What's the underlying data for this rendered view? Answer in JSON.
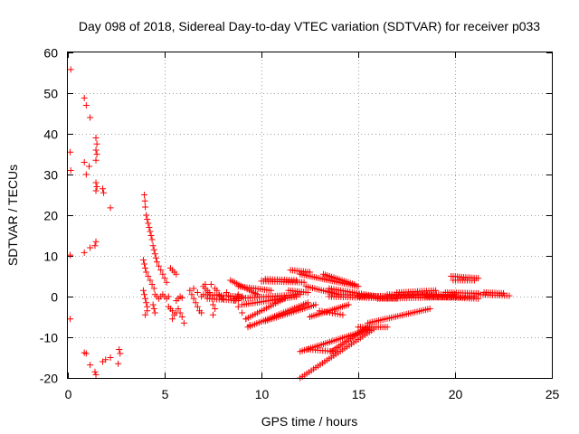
{
  "chart_data": {
    "type": "scatter",
    "title": "Day 098 of 2018, Sidereal Day-to-day VTEC variation (SDTVAR) for receiver p033",
    "xlabel": "GPS time / hours",
    "ylabel": "SDTVAR / TECUs",
    "xlim": [
      0,
      25
    ],
    "ylim": [
      -20,
      60
    ],
    "xticks": [
      "0",
      "5",
      "10",
      "15",
      "20",
      "25"
    ],
    "yticks": [
      "-20",
      "-10",
      "0",
      "10",
      "20",
      "30",
      "40",
      "50",
      "60"
    ],
    "xtick_values": [
      0,
      5,
      10,
      15,
      20,
      25
    ],
    "ytick_values": [
      -20,
      -10,
      0,
      10,
      20,
      30,
      40,
      50,
      60
    ],
    "grid": true,
    "marker": "+",
    "color": "#ff0000",
    "points": [
      [
        0.15,
        55.8
      ],
      [
        0.12,
        35.5
      ],
      [
        0.15,
        31.0
      ],
      [
        0.12,
        10.2
      ],
      [
        0.12,
        -5.5
      ],
      [
        0.85,
        48.8
      ],
      [
        0.95,
        47.0
      ],
      [
        1.15,
        44.0
      ],
      [
        0.85,
        33.0
      ],
      [
        1.1,
        32.0
      ],
      [
        0.95,
        30.0
      ],
      [
        0.85,
        10.8
      ],
      [
        1.15,
        12.0
      ],
      [
        1.4,
        12.5
      ],
      [
        1.45,
        13.5
      ],
      [
        0.85,
        -13.8
      ],
      [
        0.95,
        -14.0
      ],
      [
        1.15,
        -16.8
      ],
      [
        1.4,
        -18.5
      ],
      [
        1.45,
        -19.2
      ],
      [
        1.45,
        39.0
      ],
      [
        1.5,
        37.5
      ],
      [
        1.45,
        36.0
      ],
      [
        1.5,
        35.0
      ],
      [
        1.45,
        33.5
      ],
      [
        1.45,
        28.0
      ],
      [
        1.5,
        27.0
      ],
      [
        1.45,
        26.0
      ],
      [
        1.8,
        26.5
      ],
      [
        1.85,
        25.5
      ],
      [
        2.2,
        21.8
      ],
      [
        1.8,
        -16.0
      ],
      [
        1.95,
        -15.5
      ],
      [
        2.2,
        -15.0
      ],
      [
        2.65,
        -13.0
      ],
      [
        2.7,
        -14.0
      ],
      [
        2.6,
        -16.5
      ],
      [
        3.95,
        25.0
      ],
      [
        3.98,
        23.5
      ],
      [
        4.0,
        22.0
      ],
      [
        4.05,
        20.0
      ],
      [
        4.1,
        19.0
      ],
      [
        4.15,
        18.0
      ],
      [
        4.2,
        17.0
      ],
      [
        4.25,
        16.0
      ],
      [
        4.3,
        15.0
      ],
      [
        4.35,
        14.0
      ],
      [
        4.4,
        12.5
      ],
      [
        4.45,
        11.5
      ],
      [
        4.5,
        10.5
      ],
      [
        4.55,
        9.5
      ],
      [
        4.6,
        8.5
      ],
      [
        4.7,
        7.5
      ],
      [
        4.8,
        6.5
      ],
      [
        4.9,
        5.5
      ],
      [
        5.0,
        4.5
      ],
      [
        5.1,
        3.5
      ],
      [
        3.9,
        9.0
      ],
      [
        3.95,
        8.0
      ],
      [
        4.0,
        7.0
      ],
      [
        4.05,
        6.0
      ],
      [
        4.15,
        5.0
      ],
      [
        4.25,
        4.0
      ],
      [
        4.35,
        3.0
      ],
      [
        4.45,
        2.0
      ],
      [
        3.9,
        1.5
      ],
      [
        3.95,
        0.5
      ],
      [
        4.0,
        -0.5
      ],
      [
        4.05,
        -1.5
      ],
      [
        4.1,
        -2.5
      ],
      [
        4.1,
        -3.5
      ],
      [
        4.0,
        -4.5
      ],
      [
        4.4,
        -2.0
      ],
      [
        4.45,
        -3.0
      ],
      [
        4.5,
        -4.0
      ],
      [
        4.5,
        0.5
      ],
      [
        4.6,
        0.0
      ],
      [
        4.7,
        -0.5
      ],
      [
        4.8,
        0.0
      ],
      [
        4.9,
        0.5
      ],
      [
        5.0,
        0.0
      ],
      [
        5.1,
        -0.5
      ],
      [
        5.2,
        0.0
      ],
      [
        5.3,
        7.0
      ],
      [
        5.4,
        6.5
      ],
      [
        5.5,
        6.0
      ],
      [
        5.6,
        5.5
      ],
      [
        5.2,
        -2.5
      ],
      [
        5.3,
        -3.0
      ],
      [
        5.4,
        -3.5
      ],
      [
        5.5,
        -4.5
      ],
      [
        5.4,
        -5.5
      ],
      [
        5.6,
        -4.0
      ],
      [
        5.7,
        -3.0
      ],
      [
        5.8,
        -4.0
      ],
      [
        5.9,
        -5.0
      ],
      [
        6.0,
        -6.5
      ],
      [
        5.6,
        -1.0
      ],
      [
        5.7,
        -0.5
      ],
      [
        5.8,
        0.0
      ],
      [
        5.9,
        -0.3
      ],
      [
        6.3,
        1.5
      ],
      [
        6.4,
        0.5
      ],
      [
        6.5,
        -0.5
      ],
      [
        6.6,
        -1.5
      ],
      [
        6.7,
        -2.5
      ],
      [
        6.8,
        -3.5
      ],
      [
        6.9,
        -4.0
      ],
      [
        6.5,
        2.0
      ],
      [
        6.7,
        1.0
      ],
      [
        6.9,
        0.0
      ],
      [
        7.0,
        2.5
      ],
      [
        7.1,
        2.0
      ],
      [
        7.2,
        1.5
      ],
      [
        7.3,
        1.0
      ],
      [
        7.1,
        3.0
      ],
      [
        7.4,
        3.0
      ],
      [
        7.6,
        2.0
      ],
      [
        7.7,
        1.5
      ],
      [
        7.5,
        -2.0
      ],
      [
        7.6,
        -3.0
      ],
      [
        7.5,
        -4.5
      ],
      [
        7.8,
        0.5
      ],
      [
        7.9,
        0.0
      ],
      [
        8.0,
        -0.5
      ],
      [
        8.2,
        1.0
      ],
      [
        8.4,
        0.0
      ],
      [
        8.6,
        -1.0
      ],
      [
        8.8,
        -2.5
      ],
      [
        9.0,
        -4.0
      ],
      [
        9.2,
        -5.5
      ],
      [
        9.4,
        -7.0
      ],
      [
        8.8,
        0.5
      ],
      [
        9.0,
        0.0
      ]
    ],
    "segments": [
      {
        "x1": 7.0,
        "y1": 0.5,
        "x2": 9.0,
        "y2": 0.0,
        "n": 18
      },
      {
        "x1": 7.2,
        "y1": -0.5,
        "x2": 8.8,
        "y2": -1.0,
        "n": 14
      },
      {
        "x1": 8.4,
        "y1": 4.0,
        "x2": 9.8,
        "y2": 0.5,
        "n": 14
      },
      {
        "x1": 8.8,
        "y1": 2.5,
        "x2": 10.5,
        "y2": 1.5,
        "n": 16
      },
      {
        "x1": 8.6,
        "y1": -0.5,
        "x2": 12.0,
        "y2": 0.5,
        "n": 30
      },
      {
        "x1": 9.0,
        "y1": -2.0,
        "x2": 11.8,
        "y2": 0.0,
        "n": 26
      },
      {
        "x1": 9.2,
        "y1": -5.5,
        "x2": 11.2,
        "y2": -0.5,
        "n": 18
      },
      {
        "x1": 10.0,
        "y1": 3.8,
        "x2": 12.2,
        "y2": 3.5,
        "n": 20
      },
      {
        "x1": 10.2,
        "y1": 4.3,
        "x2": 11.8,
        "y2": 4.0,
        "n": 14
      },
      {
        "x1": 11.4,
        "y1": 1.5,
        "x2": 12.4,
        "y2": 1.0,
        "n": 10
      },
      {
        "x1": 9.3,
        "y1": -7.5,
        "x2": 12.4,
        "y2": -1.5,
        "n": 28
      },
      {
        "x1": 10.2,
        "y1": -6.0,
        "x2": 12.8,
        "y2": -2.0,
        "n": 24
      },
      {
        "x1": 11.5,
        "y1": 6.5,
        "x2": 12.5,
        "y2": 6.0,
        "n": 10
      },
      {
        "x1": 12.0,
        "y1": 5.5,
        "x2": 15.0,
        "y2": 2.5,
        "n": 30
      },
      {
        "x1": 12.3,
        "y1": 2.5,
        "x2": 14.0,
        "y2": 0.5,
        "n": 16
      },
      {
        "x1": 12.5,
        "y1": -5.0,
        "x2": 14.5,
        "y2": -2.0,
        "n": 20
      },
      {
        "x1": 12.0,
        "y1": -13.5,
        "x2": 15.6,
        "y2": -8.0,
        "n": 34
      },
      {
        "x1": 12.0,
        "y1": -20.0,
        "x2": 15.8,
        "y2": -8.0,
        "n": 34
      },
      {
        "x1": 12.4,
        "y1": -13.0,
        "x2": 13.8,
        "y2": -13.5,
        "n": 12
      },
      {
        "x1": 13.6,
        "y1": -13.5,
        "x2": 15.5,
        "y2": -7.5,
        "n": 20
      },
      {
        "x1": 13.0,
        "y1": -3.5,
        "x2": 14.2,
        "y2": -4.5,
        "n": 10
      },
      {
        "x1": 13.2,
        "y1": 5.5,
        "x2": 14.8,
        "y2": 3.0,
        "n": 16
      },
      {
        "x1": 13.5,
        "y1": 2.0,
        "x2": 16.0,
        "y2": 0.0,
        "n": 22
      },
      {
        "x1": 13.5,
        "y1": 0.0,
        "x2": 17.0,
        "y2": -0.5,
        "n": 30
      },
      {
        "x1": 14.0,
        "y1": 0.5,
        "x2": 16.5,
        "y2": 0.0,
        "n": 22
      },
      {
        "x1": 15.0,
        "y1": -7.5,
        "x2": 16.5,
        "y2": -7.5,
        "n": 14
      },
      {
        "x1": 15.5,
        "y1": -6.5,
        "x2": 18.7,
        "y2": -3.0,
        "n": 30
      },
      {
        "x1": 15.0,
        "y1": 0.0,
        "x2": 19.5,
        "y2": 0.5,
        "n": 40
      },
      {
        "x1": 16.0,
        "y1": -0.5,
        "x2": 21.0,
        "y2": 0.0,
        "n": 44
      },
      {
        "x1": 16.5,
        "y1": 0.5,
        "x2": 20.0,
        "y2": 0.5,
        "n": 30
      },
      {
        "x1": 17.0,
        "y1": 1.0,
        "x2": 19.0,
        "y2": 1.5,
        "n": 18
      },
      {
        "x1": 18.5,
        "y1": 0.0,
        "x2": 21.2,
        "y2": -0.5,
        "n": 24
      },
      {
        "x1": 19.8,
        "y1": 5.0,
        "x2": 21.2,
        "y2": 4.5,
        "n": 14
      },
      {
        "x1": 19.9,
        "y1": 4.0,
        "x2": 21.0,
        "y2": 4.0,
        "n": 10
      },
      {
        "x1": 19.5,
        "y1": 1.0,
        "x2": 21.2,
        "y2": 0.8,
        "n": 16
      },
      {
        "x1": 21.2,
        "y1": 0.5,
        "x2": 22.8,
        "y2": 0.2,
        "n": 14
      },
      {
        "x1": 21.5,
        "y1": 1.0,
        "x2": 22.5,
        "y2": 0.8,
        "n": 10
      }
    ]
  }
}
